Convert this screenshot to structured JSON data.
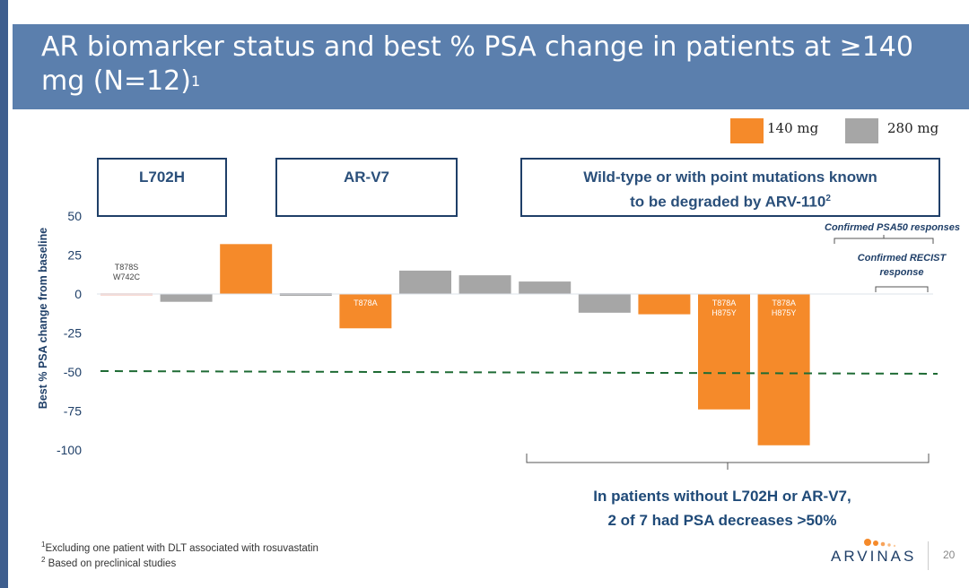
{
  "slide": {
    "title": "AR biomarker status and best % PSA change in patients at ≥140 mg (N=12)",
    "title_sup": "1",
    "page_number": "20",
    "logo": "ARVINAS"
  },
  "legend": [
    {
      "label": "140 mg",
      "color": "#f58a2a"
    },
    {
      "label": "280 mg",
      "color": "#a6a6a6"
    }
  ],
  "groups": [
    {
      "label": "L702H"
    },
    {
      "label": "AR-V7"
    },
    {
      "label_line1": "Wild-type or with point mutations known",
      "label_line2": "to be degraded by ARV-110",
      "sup": "2"
    }
  ],
  "annotations": {
    "psa50": "Confirmed PSA50 responses",
    "recist_line1": "Confirmed RECIST",
    "recist_line2": "response"
  },
  "summary": {
    "line1": "In patients without L702H or AR-V7,",
    "line2": "2 of 7 had PSA decreases >50%"
  },
  "footnotes": [
    {
      "sup": "1",
      "text": "Excluding one patient with DLT associated with rosuvastatin"
    },
    {
      "sup": "2",
      "text": " Based on preclinical studies"
    }
  ],
  "chart_data": {
    "type": "bar",
    "ylabel": "Best % PSA change from baseline",
    "ylim": [
      -100,
      50
    ],
    "yticks": [
      50,
      25,
      0,
      -25,
      -50,
      -75,
      -100
    ],
    "reference_line": -50,
    "bars": [
      {
        "value": 0,
        "dose": "140 mg",
        "mutation": "T878S\nW742C"
      },
      {
        "value": -5,
        "dose": "280 mg",
        "mutation": ""
      },
      {
        "value": 32,
        "dose": "140 mg",
        "mutation": ""
      },
      {
        "value": 1,
        "dose": "280 mg",
        "mutation": ""
      },
      {
        "value": -22,
        "dose": "140 mg",
        "mutation": "T878A"
      },
      {
        "value": 15,
        "dose": "280 mg",
        "mutation": ""
      },
      {
        "value": 12,
        "dose": "280 mg",
        "mutation": ""
      },
      {
        "value": 8,
        "dose": "280 mg",
        "mutation": ""
      },
      {
        "value": -12,
        "dose": "280 mg",
        "mutation": ""
      },
      {
        "value": -13,
        "dose": "140 mg",
        "mutation": ""
      },
      {
        "value": -74,
        "dose": "140 mg",
        "mutation": "T878A\nH875Y"
      },
      {
        "value": -97,
        "dose": "140 mg",
        "mutation": "T878A\nH875Y"
      }
    ]
  }
}
